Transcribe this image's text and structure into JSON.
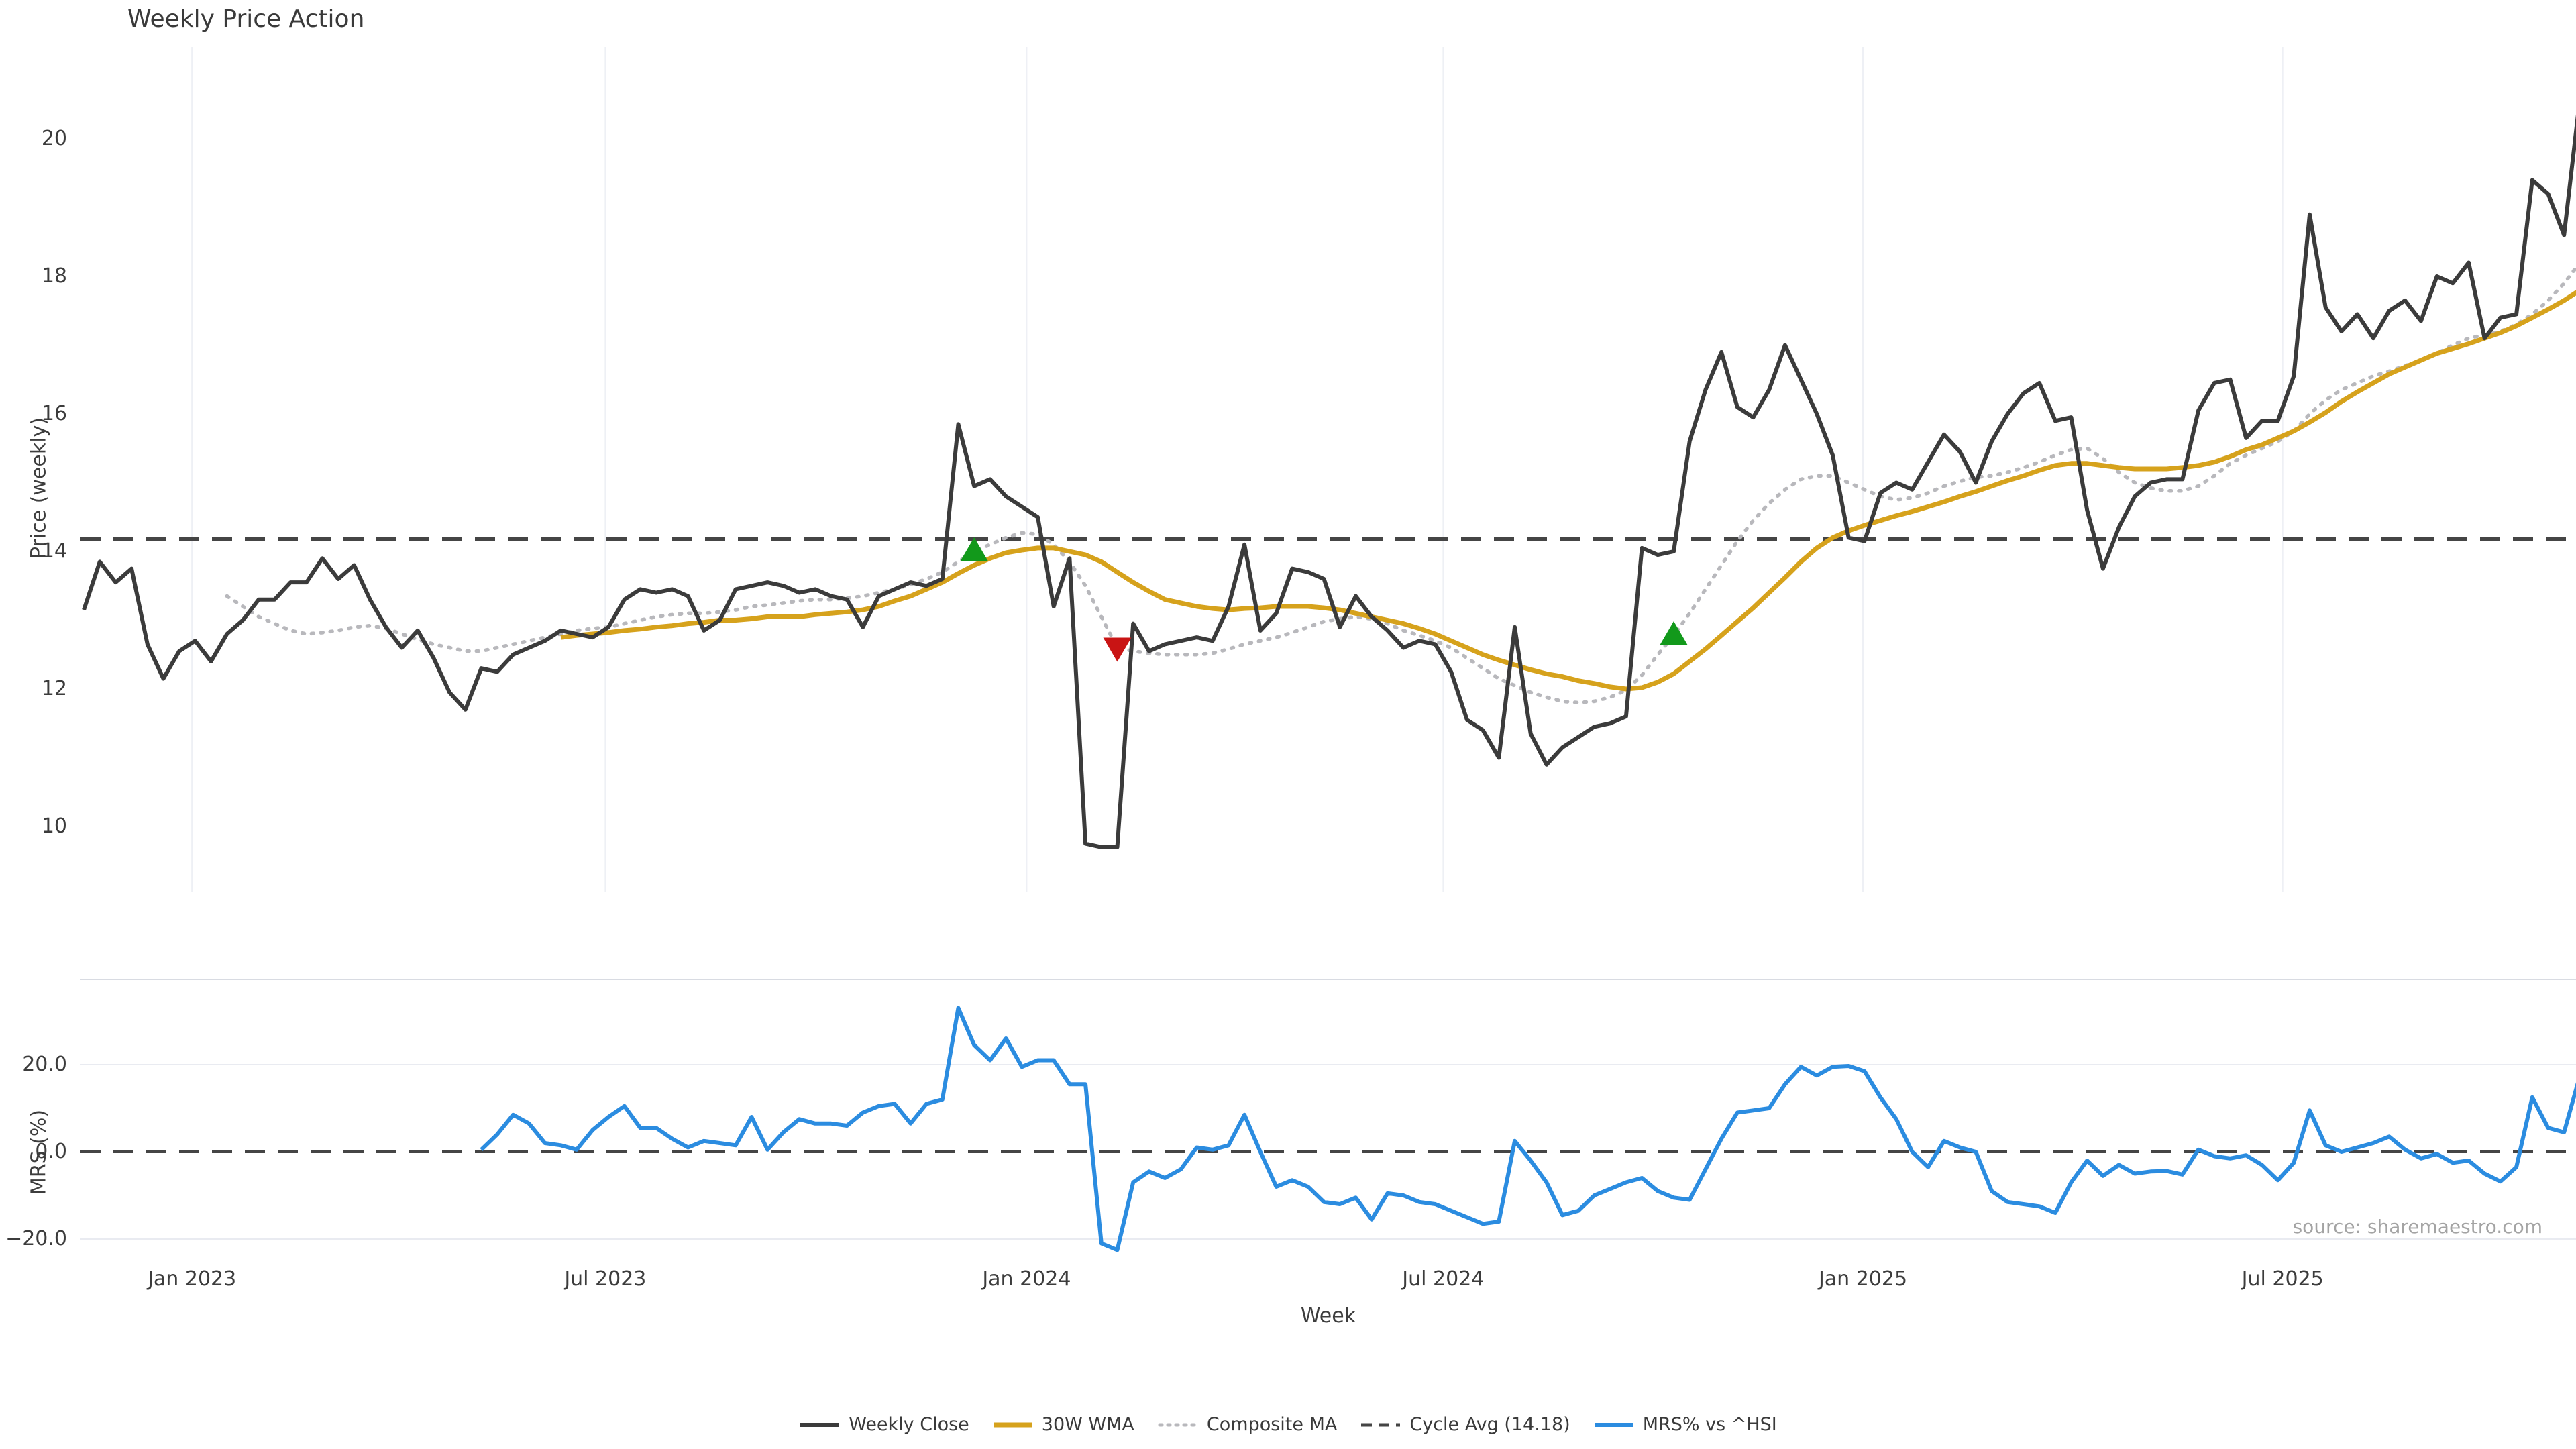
{
  "title": "Weekly Price Action",
  "source_note": "source: sharemaestro.com",
  "colors": {
    "weekly_close": "#3b3b3b",
    "wma_30w": "#d6a21c",
    "composite_ma": "#b8b8bc",
    "cycle_avg": "#454545",
    "mrs": "#2b8ce0",
    "buy_marker": "#12991b",
    "sell_marker": "#c91414",
    "grid": "#eef0f5",
    "background": "#ffffff"
  },
  "legend": {
    "items": [
      "Weekly Close",
      "30W WMA",
      "Composite MA",
      "Cycle Avg (14.18)",
      "MRS% vs ^HSI"
    ]
  },
  "chart_data": [
    {
      "type": "line",
      "panel": "price",
      "title": "Weekly Price Action",
      "ylabel": "Price (weekly)",
      "x_unit": "week_index",
      "ylim": [
        9.0,
        21.35
      ],
      "grid": "vertical-only",
      "cycle_avg": 14.18,
      "yticks": [
        {
          "label": "20",
          "v": 20
        },
        {
          "label": "18",
          "v": 18
        },
        {
          "label": "16",
          "v": 16
        },
        {
          "label": "14",
          "v": 14
        },
        {
          "label": "12",
          "v": 12
        },
        {
          "label": "10",
          "v": 10
        }
      ],
      "xticks": [
        {
          "label": "Jan 2023",
          "i": 6.8
        },
        {
          "label": "Jul 2023",
          "i": 32.8
        },
        {
          "label": "Jan 2024",
          "i": 59.3
        },
        {
          "label": "Jul 2024",
          "i": 85.5
        },
        {
          "label": "Jan 2025",
          "i": 111.9
        },
        {
          "label": "Jul 2025",
          "i": 138.3
        }
      ],
      "markers": [
        {
          "index": 56,
          "price": 14.0,
          "type": "buy"
        },
        {
          "index": 65,
          "price": 12.6,
          "type": "sell"
        },
        {
          "index": 100,
          "price": 12.78,
          "type": "buy"
        }
      ],
      "series": [
        {
          "name": "Weekly Close",
          "color": "#3b3b3b",
          "style": "solid",
          "values": [
            13.15,
            13.85,
            13.55,
            13.75,
            12.65,
            12.15,
            12.55,
            12.7,
            12.4,
            12.8,
            13.0,
            13.3,
            13.3,
            13.55,
            13.55,
            13.9,
            13.6,
            13.8,
            13.3,
            12.9,
            12.6,
            12.85,
            12.45,
            11.95,
            11.7,
            12.3,
            12.25,
            12.5,
            12.6,
            12.7,
            12.85,
            12.8,
            12.75,
            12.9,
            13.3,
            13.45,
            13.4,
            13.45,
            13.35,
            12.85,
            13.0,
            13.45,
            13.5,
            13.55,
            13.5,
            13.4,
            13.45,
            13.35,
            13.3,
            12.9,
            13.35,
            13.45,
            13.55,
            13.5,
            13.6,
            15.85,
            14.95,
            15.05,
            14.8,
            14.65,
            14.5,
            13.2,
            13.9,
            9.75,
            9.7,
            9.7,
            12.95,
            12.55,
            12.65,
            12.7,
            12.75,
            12.7,
            13.2,
            14.1,
            12.85,
            13.1,
            13.75,
            13.7,
            13.6,
            12.9,
            13.35,
            13.05,
            12.85,
            12.6,
            12.7,
            12.65,
            12.25,
            11.55,
            11.4,
            11.0,
            12.9,
            11.35,
            10.9,
            11.15,
            11.3,
            11.45,
            11.5,
            11.6,
            14.05,
            13.95,
            14.0,
            15.6,
            16.35,
            16.9,
            16.1,
            15.95,
            16.35,
            17.0,
            16.5,
            16.0,
            15.4,
            14.2,
            14.15,
            14.85,
            15.0,
            14.9,
            15.3,
            15.7,
            15.45,
            15.0,
            15.6,
            16.0,
            16.3,
            16.45,
            15.9,
            15.95,
            14.6,
            13.75,
            14.35,
            14.8,
            15.0,
            15.05,
            15.05,
            16.05,
            16.45,
            16.5,
            15.65,
            15.9,
            15.9,
            16.55,
            18.9,
            17.55,
            17.2,
            17.45,
            17.1,
            17.5,
            17.65,
            17.35,
            18.0,
            17.9,
            18.2,
            17.1,
            17.4,
            17.45,
            19.4,
            19.2,
            18.6,
            20.6,
            20.85
          ]
        },
        {
          "name": "30W WMA",
          "color": "#d6a21c",
          "style": "solid",
          "values": [
            null,
            null,
            null,
            null,
            null,
            null,
            null,
            null,
            null,
            null,
            null,
            null,
            null,
            null,
            null,
            null,
            null,
            null,
            null,
            null,
            null,
            null,
            null,
            null,
            null,
            null,
            null,
            null,
            null,
            null,
            12.75,
            12.78,
            12.8,
            12.82,
            12.85,
            12.87,
            12.9,
            12.92,
            12.95,
            12.97,
            13.0,
            13.0,
            13.02,
            13.05,
            13.05,
            13.05,
            13.08,
            13.1,
            13.12,
            13.15,
            13.2,
            13.28,
            13.35,
            13.45,
            13.55,
            13.68,
            13.8,
            13.9,
            13.98,
            14.02,
            14.05,
            14.05,
            14.0,
            13.95,
            13.85,
            13.7,
            13.55,
            13.42,
            13.3,
            13.25,
            13.2,
            13.17,
            13.15,
            13.17,
            13.18,
            13.2,
            13.2,
            13.2,
            13.18,
            13.15,
            13.1,
            13.05,
            13.0,
            12.95,
            12.88,
            12.8,
            12.7,
            12.6,
            12.5,
            12.42,
            12.35,
            12.28,
            12.22,
            12.18,
            12.12,
            12.08,
            12.03,
            12.0,
            12.02,
            12.1,
            12.22,
            12.4,
            12.58,
            12.78,
            12.98,
            13.18,
            13.4,
            13.62,
            13.85,
            14.05,
            14.2,
            14.3,
            14.38,
            14.45,
            14.52,
            14.58,
            14.65,
            14.72,
            14.8,
            14.87,
            14.95,
            15.03,
            15.1,
            15.18,
            15.25,
            15.28,
            15.28,
            15.25,
            15.22,
            15.2,
            15.2,
            15.2,
            15.22,
            15.25,
            15.3,
            15.38,
            15.48,
            15.55,
            15.65,
            15.75,
            15.88,
            16.02,
            16.18,
            16.32,
            16.45,
            16.58,
            16.68,
            16.78,
            16.88,
            16.95,
            17.02,
            17.1,
            17.18,
            17.28,
            17.4,
            17.52,
            17.65,
            17.8,
            17.95
          ]
        },
        {
          "name": "Composite MA",
          "color": "#b8b8bc",
          "style": "dotted",
          "values": [
            null,
            null,
            null,
            null,
            null,
            null,
            null,
            null,
            null,
            13.35,
            13.2,
            13.05,
            12.95,
            12.85,
            12.8,
            12.82,
            12.85,
            12.9,
            12.92,
            12.88,
            12.8,
            12.72,
            12.65,
            12.6,
            12.55,
            12.55,
            12.6,
            12.65,
            12.7,
            12.75,
            12.8,
            12.85,
            12.88,
            12.9,
            12.95,
            13.0,
            13.05,
            13.08,
            13.1,
            13.1,
            13.12,
            13.15,
            13.2,
            13.22,
            13.25,
            13.28,
            13.3,
            13.3,
            13.32,
            13.35,
            13.4,
            13.45,
            13.52,
            13.6,
            13.7,
            13.85,
            14.0,
            14.1,
            14.2,
            14.27,
            14.25,
            14.1,
            13.85,
            13.5,
            13.05,
            12.6,
            12.55,
            12.52,
            12.5,
            12.5,
            12.5,
            12.52,
            12.58,
            12.65,
            12.7,
            12.75,
            12.82,
            12.9,
            12.98,
            13.02,
            13.05,
            13.02,
            12.95,
            12.85,
            12.78,
            12.7,
            12.6,
            12.45,
            12.3,
            12.15,
            12.05,
            11.95,
            11.88,
            11.82,
            11.8,
            11.82,
            11.88,
            11.98,
            12.2,
            12.5,
            12.78,
            13.1,
            13.45,
            13.8,
            14.15,
            14.45,
            14.7,
            14.9,
            15.05,
            15.1,
            15.1,
            15.0,
            14.9,
            14.8,
            14.75,
            14.78,
            14.85,
            14.95,
            15.02,
            15.08,
            15.1,
            15.15,
            15.22,
            15.3,
            15.4,
            15.48,
            15.5,
            15.35,
            15.15,
            15.0,
            14.92,
            14.88,
            14.88,
            14.95,
            15.1,
            15.28,
            15.4,
            15.5,
            15.6,
            15.75,
            16.0,
            16.2,
            16.35,
            16.45,
            16.55,
            16.62,
            16.7,
            16.78,
            16.88,
            17.0,
            17.1,
            17.15,
            17.2,
            17.3,
            17.45,
            17.65,
            17.9,
            18.2,
            18.5
          ]
        }
      ]
    },
    {
      "type": "line",
      "panel": "mrs",
      "ylabel": "MRS (%)",
      "xlabel": "Week",
      "ylim": [
        -28.0,
        39.5
      ],
      "grid": "horizontal-only",
      "zero_line": 0,
      "yticks": [
        {
          "label": "20.0",
          "v": 20
        },
        {
          "label": "0.0",
          "v": 0
        },
        {
          "label": "−20.0",
          "v": -20
        }
      ],
      "series": [
        {
          "name": "MRS% vs ^HSI",
          "color": "#2b8ce0",
          "style": "solid",
          "values": [
            null,
            null,
            null,
            null,
            null,
            null,
            null,
            null,
            null,
            null,
            null,
            null,
            null,
            null,
            null,
            null,
            null,
            null,
            null,
            null,
            null,
            null,
            null,
            null,
            null,
            0.5,
            4,
            8.5,
            6.5,
            2,
            1.5,
            0.5,
            5,
            8,
            10.5,
            5.5,
            5.5,
            3,
            1,
            2.5,
            2,
            1.5,
            8,
            0.5,
            4.5,
            7.5,
            6.5,
            6.5,
            6,
            9,
            10.5,
            11,
            6.5,
            11,
            12,
            33,
            24.5,
            21,
            26,
            19.5,
            21,
            21,
            15.5,
            15.5,
            -21,
            -22.5,
            -7,
            -4.5,
            -6,
            -4,
            1,
            0.5,
            1.5,
            8.5,
            0,
            -8,
            -6.5,
            -8,
            -11.5,
            -12,
            -10.5,
            -15.5,
            -9.5,
            -10,
            -11.5,
            -12,
            -13.5,
            -15,
            -16.5,
            -16,
            2.5,
            -2,
            -7,
            -14.5,
            -13.5,
            -10,
            -8.5,
            -7,
            -6,
            -9,
            -10.5,
            -11,
            -4,
            3,
            9,
            9.5,
            10,
            15.5,
            19.5,
            17.5,
            19.5,
            19.7,
            18.5,
            12.5,
            7.5,
            0,
            -3.5,
            2.5,
            1,
            0,
            -9,
            -11.5,
            -12,
            -12.5,
            -14,
            -7,
            -2,
            -5.5,
            -3,
            -5,
            -4.5,
            -4.4,
            -5.2,
            0.5,
            -1,
            -1.5,
            -0.8,
            -3,
            -6.5,
            -2.5,
            9.5,
            1.5,
            0,
            1,
            2,
            3.5,
            0.5,
            -1.5,
            -0.5,
            -2.5,
            -2,
            -5,
            -6.8,
            -3.5,
            12.5,
            5.5,
            4.5,
            17.5,
            13.8
          ]
        }
      ]
    }
  ]
}
